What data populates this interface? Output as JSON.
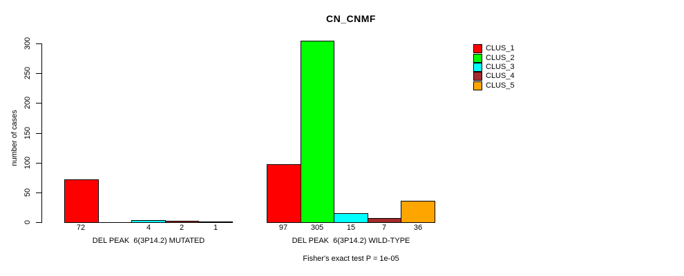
{
  "chart_data": {
    "type": "bar",
    "title": "CN_CNMF",
    "ylabel": "number of cases",
    "subtitle": "Fisher's exact test P = 1e-05",
    "ylim": [
      0,
      300
    ],
    "yticks": [
      0,
      50,
      100,
      150,
      200,
      250,
      300
    ],
    "grid": false,
    "legend_position": "right",
    "series_colors": [
      "#ff0000",
      "#00ff00",
      "#00ffff",
      "#a52a2a",
      "#ffa500"
    ],
    "legend": [
      {
        "label": "CLUS_1",
        "color": "#ff0000"
      },
      {
        "label": "CLUS_2",
        "color": "#00ff00"
      },
      {
        "label": "CLUS_3",
        "color": "#00ffff"
      },
      {
        "label": "CLUS_4",
        "color": "#a52a2a"
      },
      {
        "label": "CLUS_5",
        "color": "#ffa500"
      }
    ],
    "groups": [
      {
        "label": "DEL PEAK  6(3P14.2) MUTATED",
        "values": [
          72,
          0,
          4,
          2,
          1
        ],
        "bar_labels": [
          "72",
          "",
          "4",
          "2",
          "1"
        ]
      },
      {
        "label": "DEL PEAK  6(3P14.2) WILD-TYPE",
        "values": [
          97,
          305,
          15,
          7,
          36
        ],
        "bar_labels": [
          "97",
          "305",
          "15",
          "7",
          "36"
        ]
      }
    ]
  }
}
